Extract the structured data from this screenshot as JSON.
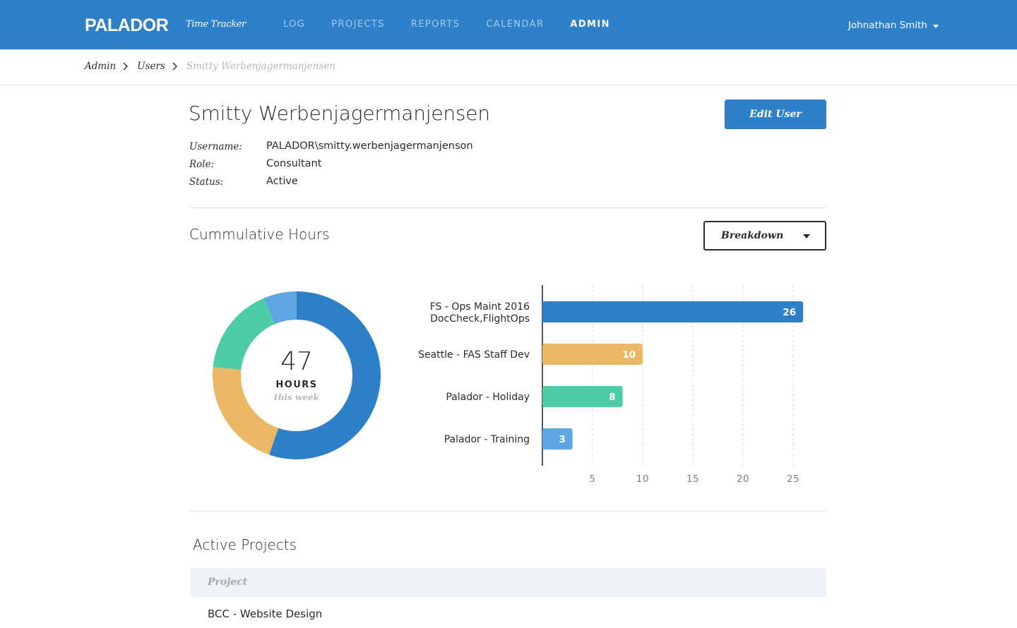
{
  "header": {
    "logo": "PALADOR",
    "app_name": "Time Tracker",
    "nav": [
      {
        "label": "LOG",
        "active": false
      },
      {
        "label": "PROJECTS",
        "active": false
      },
      {
        "label": "REPORTS",
        "active": false
      },
      {
        "label": "CALENDAR",
        "active": false
      },
      {
        "label": "ADMIN",
        "active": true
      }
    ],
    "user_name": "Johnathan Smith"
  },
  "breadcrumb": [
    "Admin",
    "Users",
    "Smitty Werbenjagermanjensen"
  ],
  "user": {
    "name": "Smitty Werbenjagermanjensen",
    "edit_label": "Edit User",
    "fields": [
      {
        "label": "Username:",
        "value": "PALADOR\\smitty.werbenjagermanjenson"
      },
      {
        "label": "Role:",
        "value": "Consultant"
      },
      {
        "label": "Status:",
        "value": "Active"
      }
    ]
  },
  "hours": {
    "title": "Cummulative Hours",
    "dropdown_label": "Breakdown",
    "total": "47",
    "unit": "HOURS",
    "subtitle": "this week"
  },
  "chart_data": {
    "type": "bar",
    "orientation": "horizontal",
    "categories": [
      "FS - Ops Maint 2016 DocCheck,FlightOps",
      "Seattle - FAS Staff Dev",
      "Palador - Holiday",
      "Palador - Training"
    ],
    "category_lines": [
      [
        "FS - Ops Maint 2016",
        "DocCheck,FlightOps"
      ],
      [
        "Seattle - FAS Staff Dev"
      ],
      [
        "Palador - Holiday"
      ],
      [
        "Palador - Training"
      ]
    ],
    "values": [
      26,
      10,
      8,
      3
    ],
    "colors": [
      "#2e80c9",
      "#ebb966",
      "#4dcda6",
      "#5ea6e2"
    ],
    "xticks": [
      5,
      10,
      15,
      20,
      25
    ],
    "xlim": [
      0,
      30
    ],
    "donut": {
      "total": 47,
      "values": [
        26,
        10,
        8,
        3
      ],
      "colors": [
        "#2e80c9",
        "#ebb966",
        "#4dcda6",
        "#5ea6e2"
      ]
    }
  },
  "projects": {
    "title": "Active Projects",
    "column": "Project",
    "rows": [
      "BCC - Website Design"
    ]
  }
}
